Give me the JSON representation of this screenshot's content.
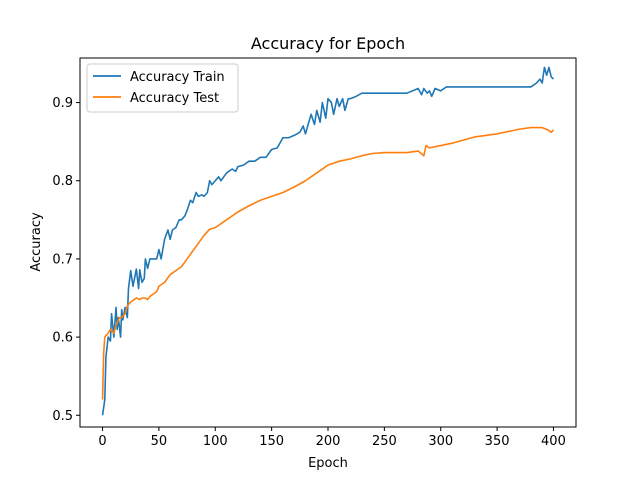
{
  "chart_data": {
    "type": "line",
    "title": "Accuracy for Epoch",
    "xlabel": "Epoch",
    "ylabel": "Accuracy",
    "xlim": [
      -20,
      420
    ],
    "ylim": [
      0.485,
      0.957
    ],
    "xticks": [
      0,
      50,
      100,
      150,
      200,
      250,
      300,
      350,
      400
    ],
    "xtick_labels": [
      "0",
      "50",
      "100",
      "150",
      "200",
      "250",
      "300",
      "350",
      "400"
    ],
    "yticks": [
      0.5,
      0.6,
      0.7,
      0.8,
      0.9
    ],
    "ytick_labels": [
      "0.5",
      "0.6",
      "0.7",
      "0.8",
      "0.9"
    ],
    "grid": false,
    "legend_position": "top-left",
    "series": [
      {
        "name": "Accuracy Train",
        "color": "#1f77b4",
        "x": [
          0,
          2,
          3,
          5,
          7,
          8,
          10,
          12,
          13,
          14,
          16,
          17,
          18,
          20,
          22,
          23,
          25,
          27,
          30,
          32,
          33,
          35,
          37,
          38,
          40,
          42,
          45,
          48,
          50,
          52,
          55,
          58,
          60,
          62,
          65,
          68,
          70,
          73,
          75,
          78,
          80,
          83,
          85,
          88,
          90,
          93,
          95,
          97,
          100,
          103,
          105,
          110,
          115,
          118,
          120,
          125,
          130,
          135,
          140,
          145,
          150,
          155,
          160,
          165,
          170,
          175,
          178,
          180,
          183,
          185,
          188,
          190,
          193,
          195,
          198,
          200,
          203,
          205,
          208,
          210,
          213,
          215,
          218,
          220,
          225,
          230,
          250,
          270,
          280,
          283,
          285,
          288,
          290,
          292,
          295,
          300,
          303,
          305,
          310,
          315,
          320,
          330,
          340,
          350,
          360,
          370,
          380,
          385,
          388,
          390,
          392,
          394,
          396,
          398,
          400
        ],
        "y": [
          0.5,
          0.52,
          0.575,
          0.6,
          0.595,
          0.63,
          0.6,
          0.638,
          0.61,
          0.625,
          0.6,
          0.635,
          0.622,
          0.638,
          0.625,
          0.662,
          0.685,
          0.665,
          0.687,
          0.662,
          0.686,
          0.67,
          0.675,
          0.7,
          0.688,
          0.7,
          0.7,
          0.7,
          0.712,
          0.7,
          0.725,
          0.737,
          0.725,
          0.737,
          0.74,
          0.75,
          0.75,
          0.755,
          0.762,
          0.775,
          0.772,
          0.785,
          0.78,
          0.782,
          0.78,
          0.785,
          0.8,
          0.795,
          0.8,
          0.805,
          0.8,
          0.81,
          0.815,
          0.812,
          0.818,
          0.82,
          0.825,
          0.825,
          0.83,
          0.83,
          0.84,
          0.842,
          0.855,
          0.855,
          0.858,
          0.862,
          0.87,
          0.86,
          0.875,
          0.885,
          0.872,
          0.89,
          0.875,
          0.9,
          0.88,
          0.905,
          0.9,
          0.885,
          0.905,
          0.895,
          0.905,
          0.89,
          0.905,
          0.905,
          0.908,
          0.912,
          0.912,
          0.912,
          0.918,
          0.91,
          0.918,
          0.912,
          0.915,
          0.908,
          0.918,
          0.915,
          0.918,
          0.92,
          0.92,
          0.92,
          0.92,
          0.92,
          0.92,
          0.92,
          0.92,
          0.92,
          0.92,
          0.925,
          0.93,
          0.925,
          0.945,
          0.935,
          0.945,
          0.933,
          0.93
        ]
      },
      {
        "name": "Accuracy Test",
        "color": "#ff7f0e",
        "x": [
          0,
          1,
          2,
          3,
          5,
          7,
          10,
          12,
          15,
          17,
          20,
          22,
          25,
          28,
          30,
          33,
          35,
          38,
          40,
          42,
          45,
          48,
          50,
          55,
          60,
          65,
          70,
          75,
          80,
          85,
          90,
          95,
          100,
          110,
          120,
          130,
          140,
          150,
          160,
          170,
          180,
          190,
          200,
          210,
          220,
          230,
          240,
          250,
          260,
          270,
          280,
          285,
          287,
          290,
          300,
          310,
          320,
          330,
          340,
          350,
          360,
          370,
          380,
          390,
          395,
          398,
          400
        ],
        "y": [
          0.52,
          0.58,
          0.6,
          0.602,
          0.605,
          0.61,
          0.605,
          0.615,
          0.625,
          0.625,
          0.63,
          0.64,
          0.645,
          0.648,
          0.65,
          0.648,
          0.65,
          0.65,
          0.648,
          0.652,
          0.655,
          0.658,
          0.665,
          0.67,
          0.68,
          0.685,
          0.69,
          0.7,
          0.71,
          0.72,
          0.73,
          0.738,
          0.74,
          0.75,
          0.76,
          0.768,
          0.775,
          0.78,
          0.785,
          0.792,
          0.8,
          0.81,
          0.82,
          0.825,
          0.828,
          0.832,
          0.835,
          0.836,
          0.836,
          0.836,
          0.838,
          0.832,
          0.845,
          0.842,
          0.845,
          0.848,
          0.852,
          0.856,
          0.858,
          0.86,
          0.863,
          0.866,
          0.868,
          0.868,
          0.865,
          0.862,
          0.865
        ]
      }
    ]
  }
}
